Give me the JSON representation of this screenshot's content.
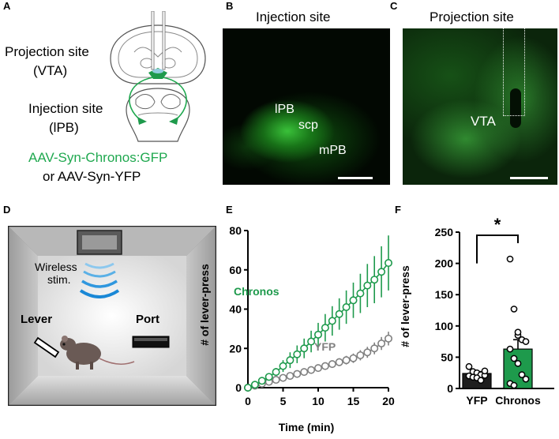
{
  "panels": {
    "A": {
      "letter": "A",
      "projection_label": "Projection site",
      "projection_sub": "(VTA)",
      "injection_label": "Injection site",
      "injection_sub": "(lPB)",
      "virus_line1": "AAV-Syn-Chronos:GFP",
      "virus_line2": "or AAV-Syn-YFP"
    },
    "B": {
      "letter": "B",
      "title": "Injection site",
      "labels": {
        "lpb": "lPB",
        "scp": "scp",
        "mpb": "mPB"
      }
    },
    "C": {
      "letter": "C",
      "title": "Projection site",
      "labels": {
        "vta": "VTA"
      }
    },
    "D": {
      "letter": "D",
      "wireless_line1": "Wireless",
      "wireless_line2": "stim.",
      "lever": "Lever",
      "port": "Port"
    },
    "E": {
      "letter": "E",
      "chronos_label": "Chronos",
      "yfp_label": "YFP"
    },
    "F": {
      "letter": "F",
      "significance": "*"
    }
  },
  "colors": {
    "chronos": "#1e9a4c",
    "yfp": "#808080",
    "fluor": "#1fc41f"
  },
  "chart_data": [
    {
      "type": "line",
      "xlabel": "Time (min)",
      "ylabel": "# of lever-press",
      "xlim": [
        0,
        20
      ],
      "ylim": [
        0,
        80
      ],
      "xticks": [
        0,
        5,
        10,
        15,
        20
      ],
      "yticks": [
        0,
        20,
        40,
        60,
        80
      ],
      "x": [
        0,
        1,
        2,
        3,
        4,
        5,
        6,
        7,
        8,
        9,
        10,
        11,
        12,
        13,
        14,
        15,
        16,
        17,
        18,
        19,
        20
      ],
      "series": [
        {
          "name": "Chronos",
          "values": [
            0,
            1.5,
            3.5,
            5.5,
            8,
            11,
            14,
            17,
            20,
            23.5,
            27,
            30.5,
            34,
            37.5,
            41,
            44.5,
            48,
            52,
            55,
            59,
            63.5
          ],
          "errors": [
            0,
            0.5,
            1,
            1.5,
            2,
            3,
            4,
            4.5,
            5,
            5.5,
            6,
            7,
            7.5,
            8,
            8.5,
            9,
            10,
            11,
            12,
            13,
            14
          ]
        },
        {
          "name": "YFP",
          "values": [
            0,
            1,
            2,
            3,
            4,
            5,
            6,
            7,
            8,
            9,
            10,
            11,
            12,
            13,
            14,
            15,
            16.5,
            18,
            20,
            22.5,
            25
          ],
          "errors": [
            0,
            0.3,
            0.5,
            0.7,
            0.8,
            1,
            1,
            1.2,
            1.3,
            1.5,
            1.6,
            1.8,
            1.9,
            2,
            2.2,
            2.4,
            2.6,
            2.8,
            3,
            3.3,
            3.5
          ]
        }
      ]
    },
    {
      "type": "bar",
      "ylabel": "# of lever-press",
      "ylim": [
        0,
        250
      ],
      "yticks": [
        0,
        50,
        100,
        150,
        200,
        250
      ],
      "categories": [
        "YFP",
        "Chronos"
      ],
      "values": [
        24,
        63
      ],
      "errors": [
        3,
        15
      ],
      "points": [
        [
          35,
          27,
          25,
          22,
          21,
          20,
          18,
          17,
          13,
          28
        ],
        [
          207,
          127,
          85,
          78,
          75,
          63,
          48,
          40,
          22,
          15,
          8,
          5,
          90
        ]
      ]
    }
  ]
}
